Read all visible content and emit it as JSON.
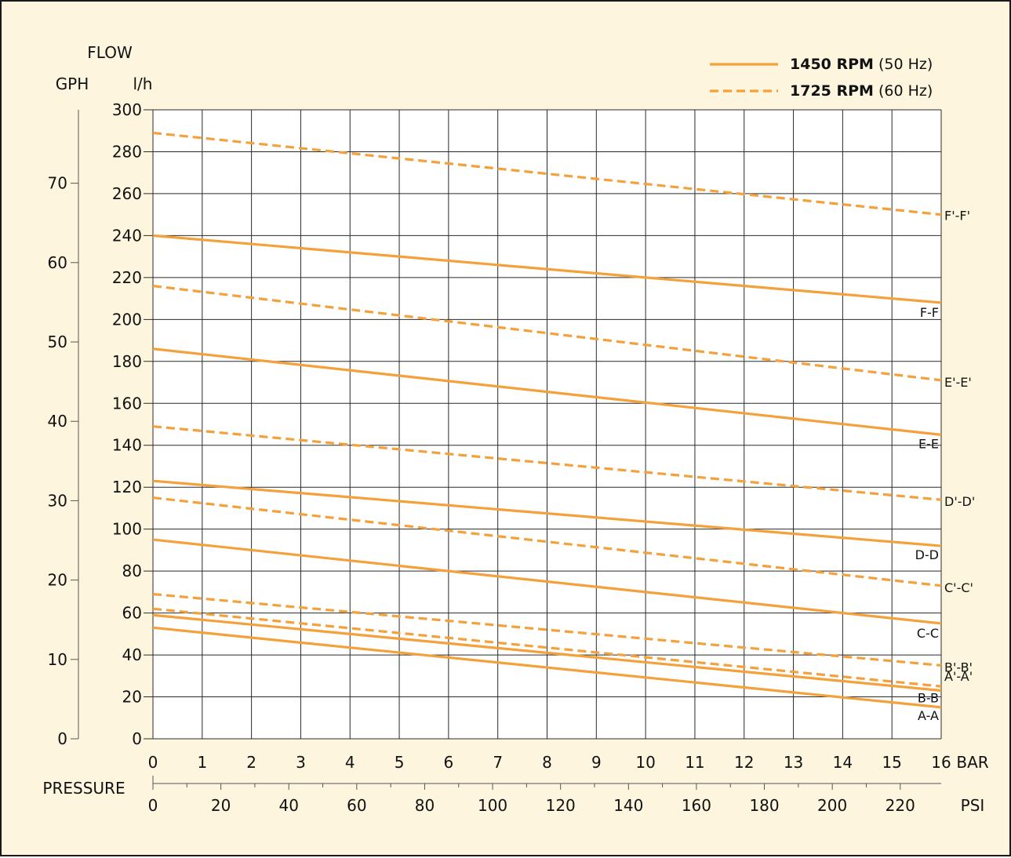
{
  "chart_data": {
    "type": "line",
    "background": "#fdf5dd",
    "line_color": "#f4a13c",
    "legend_position": "top-right",
    "grid": true,
    "legend": [
      {
        "style": "solid",
        "bold": "1450 RPM",
        "rest": " (50 Hz)"
      },
      {
        "style": "dashed",
        "bold": "1725 RPM",
        "rest": " (60 Hz)"
      }
    ],
    "y_title": "FLOW",
    "y_units_left": "GPH",
    "y_units_right": "l/h",
    "x_title": "PRESSURE",
    "x_unit_top": "BAR",
    "x_unit_bottom": "PSI",
    "xlim": [
      0,
      16
    ],
    "ylim": [
      0,
      300
    ],
    "x_ticks_bar": [
      "0",
      "1",
      "2",
      "3",
      "4",
      "5",
      "6",
      "7",
      "8",
      "9",
      "10",
      "11",
      "12",
      "13",
      "14",
      "15",
      "16"
    ],
    "y_ticks_lh": [
      "0",
      "20",
      "40",
      "60",
      "80",
      "100",
      "120",
      "140",
      "160",
      "180",
      "200",
      "220",
      "240",
      "260",
      "280",
      "300"
    ],
    "y_ticks_gph": [
      "0",
      "10",
      "20",
      "30",
      "40",
      "50",
      "60",
      "70"
    ],
    "x_ticks_psi": [
      "0",
      "20",
      "40",
      "60",
      "80",
      "100",
      "120",
      "140",
      "160",
      "180",
      "200",
      "220"
    ],
    "series": [
      {
        "name": "F'-F'",
        "style": "dashed",
        "x": [
          0,
          16
        ],
        "y": [
          289,
          250
        ]
      },
      {
        "name": "F-F",
        "style": "solid",
        "x": [
          0,
          16
        ],
        "y": [
          240,
          208
        ]
      },
      {
        "name": "E'-E'",
        "style": "dashed",
        "x": [
          0,
          16
        ],
        "y": [
          216,
          171
        ]
      },
      {
        "name": "E-E",
        "style": "solid",
        "x": [
          0,
          16
        ],
        "y": [
          186,
          145
        ]
      },
      {
        "name": "D'-D'",
        "style": "dashed",
        "x": [
          0,
          16
        ],
        "y": [
          149,
          114
        ]
      },
      {
        "name": "D-D",
        "style": "solid",
        "x": [
          0,
          16
        ],
        "y": [
          123,
          92
        ]
      },
      {
        "name": "C'-C'",
        "style": "dashed",
        "x": [
          0,
          16
        ],
        "y": [
          115,
          73
        ]
      },
      {
        "name": "C-C",
        "style": "solid",
        "x": [
          0,
          16
        ],
        "y": [
          95,
          55
        ]
      },
      {
        "name": "B'-B'",
        "style": "dashed",
        "x": [
          0,
          16
        ],
        "y": [
          69,
          35
        ]
      },
      {
        "name": "A'-A'",
        "style": "dashed",
        "x": [
          0,
          16
        ],
        "y": [
          62,
          25
        ]
      },
      {
        "name": "B-B",
        "style": "solid",
        "x": [
          0,
          16
        ],
        "y": [
          59,
          23
        ]
      },
      {
        "name": "A-A",
        "style": "solid",
        "x": [
          0,
          16
        ],
        "y": [
          53,
          15
        ]
      }
    ]
  }
}
